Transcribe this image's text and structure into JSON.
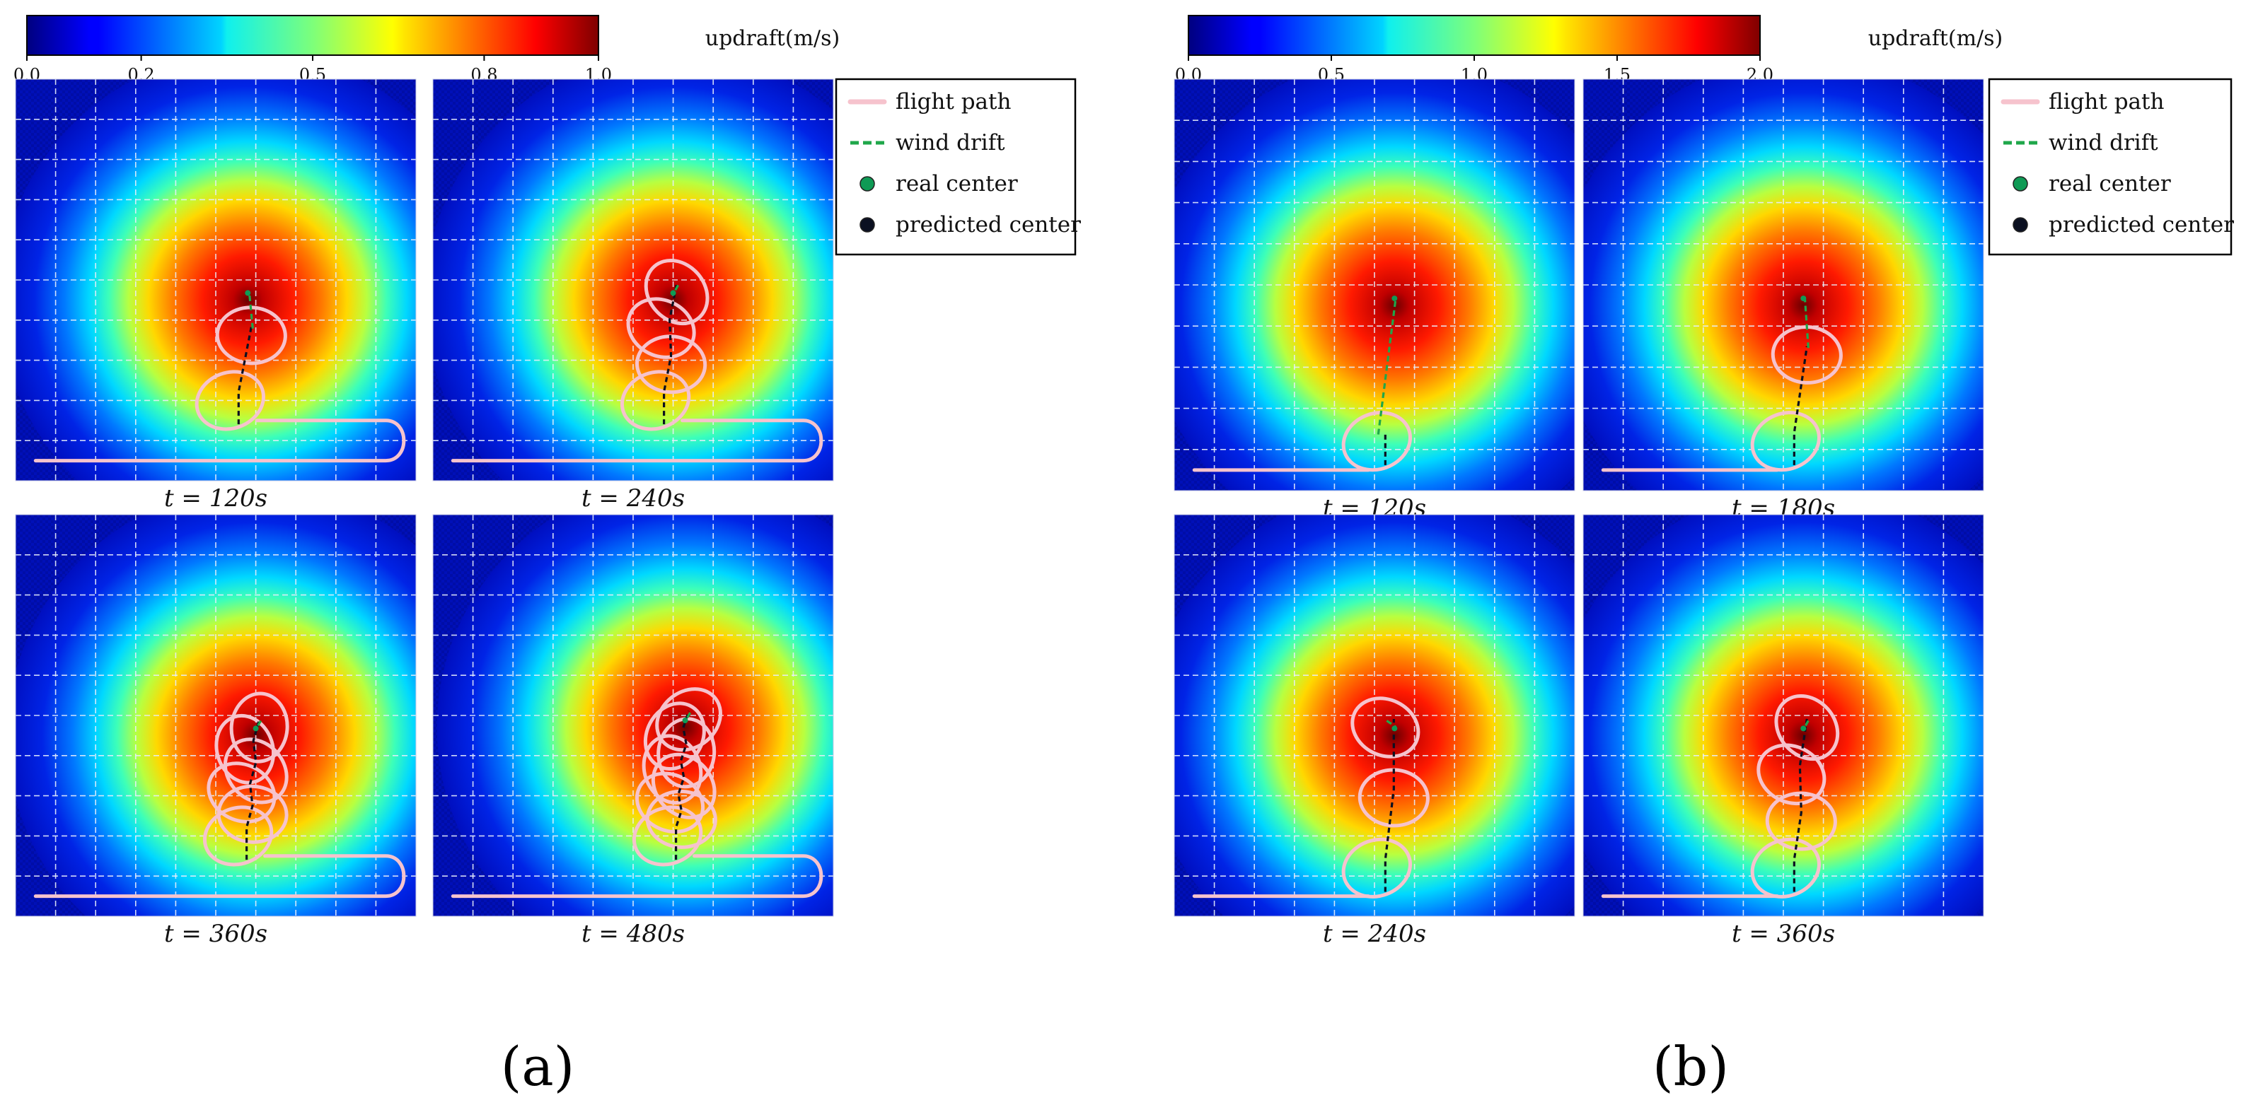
{
  "figure": {
    "description_labels": [
      "(a)",
      "(b)"
    ]
  },
  "chart_data": [
    {
      "type": "heatmap",
      "panel_label": "(a)",
      "colorbar": {
        "label": "updraft(m/s)",
        "range": [
          0.0,
          1.0
        ],
        "tick_labels": [
          "0.0",
          "0.2",
          "0.5",
          "0.8",
          "1.0"
        ],
        "tick_values": [
          0.0,
          0.2,
          0.5,
          0.8,
          1.0
        ],
        "colormap": "jet"
      },
      "legend": {
        "position": "right",
        "entries": [
          {
            "label": "flight path",
            "kind": "line",
            "color": "#f6c3cd"
          },
          {
            "label": "wind drift",
            "kind": "dashed-line",
            "color": "#1fa74a"
          },
          {
            "label": "real center",
            "kind": "marker",
            "color": "#0f9a55"
          },
          {
            "label": "predicted  center",
            "kind": "marker",
            "color": "#0b1021"
          }
        ]
      },
      "grid": true,
      "subplots": [
        {
          "caption": "t = 120s",
          "loops": 2
        },
        {
          "caption": "t = 240s",
          "loops": 4
        },
        {
          "caption": "t = 360s",
          "loops": 6
        },
        {
          "caption": "t = 480s",
          "loops": 8
        }
      ]
    },
    {
      "type": "heatmap",
      "panel_label": "(b)",
      "colorbar": {
        "label": "updraft(m/s)",
        "range": [
          0.0,
          2.0
        ],
        "tick_labels": [
          "0.0",
          "0.5",
          "1.0",
          "1.5",
          "2.0"
        ],
        "tick_values": [
          0.0,
          0.5,
          1.0,
          1.5,
          2.0
        ],
        "colormap": "jet"
      },
      "legend": {
        "position": "right",
        "entries": [
          {
            "label": "flight path",
            "kind": "line",
            "color": "#f6c3cd"
          },
          {
            "label": "wind drift",
            "kind": "dashed-line",
            "color": "#1fa74a"
          },
          {
            "label": "real center",
            "kind": "marker",
            "color": "#0f9a55"
          },
          {
            "label": "predicted  center",
            "kind": "marker",
            "color": "#0b1021"
          }
        ]
      },
      "grid": true,
      "subplots": [
        {
          "caption": "t = 120s",
          "loops": 1
        },
        {
          "caption": "t = 180s",
          "loops": 2
        },
        {
          "caption": "t = 240s",
          "loops": 3
        },
        {
          "caption": "t = 360s",
          "loops": 4
        }
      ]
    }
  ]
}
